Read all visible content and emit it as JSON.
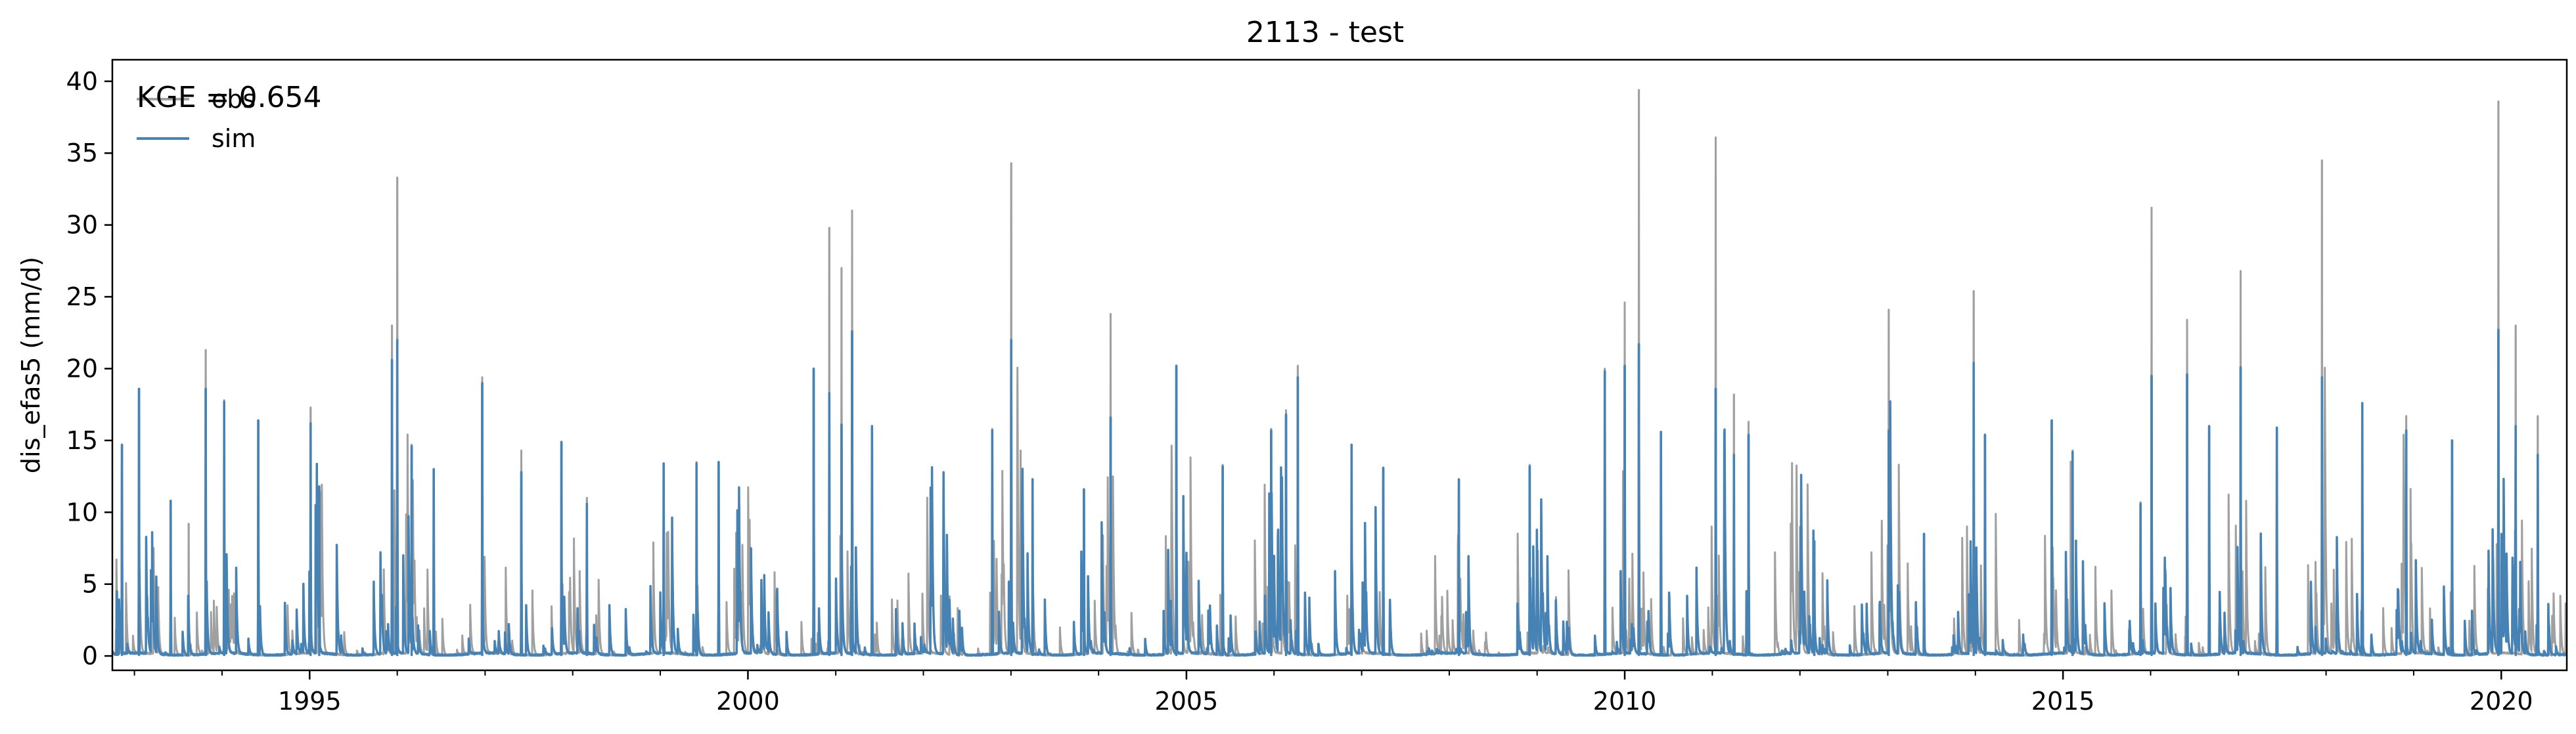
{
  "chart_data": {
    "type": "line",
    "title": "2113 - test",
    "xlabel": "",
    "ylabel": "dis_efas5 (mm/d)",
    "annotation": "KGE = 0.654",
    "x_range": [
      "1992-10-01",
      "2020-09-30"
    ],
    "ylim": [
      -1,
      41.5
    ],
    "x_ticks": [
      {
        "label": "1995",
        "date": "1995-01-01"
      },
      {
        "label": "2000",
        "date": "2000-01-01"
      },
      {
        "label": "2005",
        "date": "2005-01-01"
      },
      {
        "label": "2010",
        "date": "2010-01-01"
      },
      {
        "label": "2015",
        "date": "2015-01-01"
      },
      {
        "label": "2020",
        "date": "2020-01-01"
      }
    ],
    "y_ticks": [
      "0",
      "5",
      "10",
      "15",
      "20",
      "25",
      "30",
      "35",
      "40"
    ],
    "grid": false,
    "legend_position": "top-left",
    "series": [
      {
        "name": "obs",
        "color": "#a0a0a0",
        "peaks": [
          [
            "1992-11-10",
            14.5
          ],
          [
            "1993-01-20",
            18.3
          ],
          [
            "1993-08-15",
            9.2
          ],
          [
            "1993-10-25",
            21.3
          ],
          [
            "1994-01-10",
            17.8
          ],
          [
            "1994-06-01",
            16.2
          ],
          [
            "1995-01-05",
            17.3
          ],
          [
            "1995-02-10",
            11.8
          ],
          [
            "1995-12-10",
            23.0
          ],
          [
            "1996-01-01",
            33.3
          ],
          [
            "1996-03-01",
            14.7
          ],
          [
            "1996-12-20",
            19.4
          ],
          [
            "1997-06-01",
            14.3
          ],
          [
            "1997-11-15",
            14.8
          ],
          [
            "1998-03-01",
            11.0
          ],
          [
            "1999-01-15",
            13.4
          ],
          [
            "1999-06-01",
            13.5
          ],
          [
            "2000-10-01",
            20.0
          ],
          [
            "2000-12-05",
            29.8
          ],
          [
            "2001-01-25",
            27.0
          ],
          [
            "2001-03-10",
            31.0
          ],
          [
            "2001-06-01",
            16.0
          ],
          [
            "2002-10-15",
            15.8
          ],
          [
            "2003-01-02",
            34.3
          ],
          [
            "2003-04-01",
            12.3
          ],
          [
            "2003-11-01",
            11.6
          ],
          [
            "2004-02-20",
            23.8
          ],
          [
            "2004-11-20",
            20.2
          ],
          [
            "2005-06-01",
            13.3
          ],
          [
            "2005-12-20",
            15.8
          ],
          [
            "2006-02-20",
            17.1
          ],
          [
            "2006-04-10",
            20.2
          ],
          [
            "2006-11-20",
            14.7
          ],
          [
            "2007-04-01",
            13.1
          ],
          [
            "2008-02-10",
            12.3
          ],
          [
            "2008-12-01",
            13.3
          ],
          [
            "2009-10-10",
            20.0
          ],
          [
            "2010-01-01",
            24.6
          ],
          [
            "2010-03-01",
            39.4
          ],
          [
            "2010-06-01",
            15.6
          ],
          [
            "2011-01-15",
            36.1
          ],
          [
            "2011-04-01",
            18.2
          ],
          [
            "2011-06-01",
            16.3
          ],
          [
            "2012-03-01",
            8.0
          ],
          [
            "2013-01-05",
            24.1
          ],
          [
            "2013-06-01",
            8.5
          ],
          [
            "2013-12-25",
            25.4
          ],
          [
            "2014-02-10",
            15.4
          ],
          [
            "2014-11-15",
            16.4
          ],
          [
            "2015-02-10",
            14.3
          ],
          [
            "2015-11-20",
            10.7
          ],
          [
            "2016-01-05",
            31.2
          ],
          [
            "2016-06-01",
            23.4
          ],
          [
            "2016-09-01",
            16.0
          ],
          [
            "2017-01-10",
            26.8
          ],
          [
            "2017-06-10",
            15.9
          ],
          [
            "2017-12-15",
            34.5
          ],
          [
            "2018-06-01",
            17.6
          ],
          [
            "2018-12-01",
            16.7
          ],
          [
            "2019-06-10",
            15.0
          ],
          [
            "2019-12-20",
            38.6
          ],
          [
            "2020-03-01",
            23.0
          ],
          [
            "2020-06-01",
            16.7
          ]
        ]
      },
      {
        "name": "sim",
        "color": "#4682b4",
        "peaks": [
          [
            "1992-10-20",
            4.5
          ],
          [
            "1992-11-10",
            14.7
          ],
          [
            "1993-01-20",
            18.6
          ],
          [
            "1993-06-01",
            10.8
          ],
          [
            "1993-10-25",
            18.6
          ],
          [
            "1994-01-10",
            17.7
          ],
          [
            "1994-06-01",
            16.4
          ],
          [
            "1995-01-05",
            16.2
          ],
          [
            "1995-02-10",
            11.8
          ],
          [
            "1995-12-10",
            20.6
          ],
          [
            "1996-01-01",
            22.0
          ],
          [
            "1996-03-01",
            14.6
          ],
          [
            "1996-06-01",
            13.0
          ],
          [
            "1996-12-20",
            19.0
          ],
          [
            "1997-06-01",
            12.8
          ],
          [
            "1997-11-15",
            14.9
          ],
          [
            "1998-03-01",
            10.6
          ],
          [
            "1999-01-15",
            13.4
          ],
          [
            "1999-06-01",
            13.4
          ],
          [
            "1999-09-01",
            13.5
          ],
          [
            "2000-10-01",
            20.0
          ],
          [
            "2000-12-05",
            18.3
          ],
          [
            "2001-01-25",
            16.1
          ],
          [
            "2001-03-10",
            22.6
          ],
          [
            "2001-06-01",
            16.0
          ],
          [
            "2002-10-15",
            15.7
          ],
          [
            "2003-01-02",
            22.0
          ],
          [
            "2003-04-01",
            12.3
          ],
          [
            "2003-11-01",
            11.6
          ],
          [
            "2004-02-20",
            16.6
          ],
          [
            "2004-11-20",
            20.2
          ],
          [
            "2005-06-01",
            13.2
          ],
          [
            "2005-12-20",
            15.7
          ],
          [
            "2006-02-20",
            16.8
          ],
          [
            "2006-04-10",
            19.4
          ],
          [
            "2006-11-20",
            14.7
          ],
          [
            "2007-04-01",
            13.1
          ],
          [
            "2008-02-10",
            12.3
          ],
          [
            "2008-12-01",
            13.2
          ],
          [
            "2009-10-10",
            19.8
          ],
          [
            "2010-01-01",
            20.2
          ],
          [
            "2010-03-01",
            21.7
          ],
          [
            "2010-06-01",
            15.6
          ],
          [
            "2011-01-15",
            18.6
          ],
          [
            "2011-04-01",
            14.0
          ],
          [
            "2011-06-01",
            15.4
          ],
          [
            "2012-03-01",
            8.0
          ],
          [
            "2013-01-05",
            15.7
          ],
          [
            "2013-06-01",
            8.5
          ],
          [
            "2013-12-25",
            20.4
          ],
          [
            "2014-02-10",
            15.4
          ],
          [
            "2014-11-15",
            16.4
          ],
          [
            "2015-02-10",
            14.2
          ],
          [
            "2015-11-20",
            10.6
          ],
          [
            "2016-01-05",
            19.5
          ],
          [
            "2016-06-01",
            19.6
          ],
          [
            "2016-09-01",
            16.0
          ],
          [
            "2017-01-10",
            20.1
          ],
          [
            "2017-06-10",
            15.9
          ],
          [
            "2017-12-15",
            19.4
          ],
          [
            "2018-06-01",
            17.6
          ],
          [
            "2018-12-01",
            15.7
          ],
          [
            "2019-06-10",
            15.0
          ],
          [
            "2019-12-20",
            22.7
          ],
          [
            "2020-03-01",
            16.0
          ],
          [
            "2020-06-01",
            14.0
          ]
        ]
      }
    ]
  }
}
